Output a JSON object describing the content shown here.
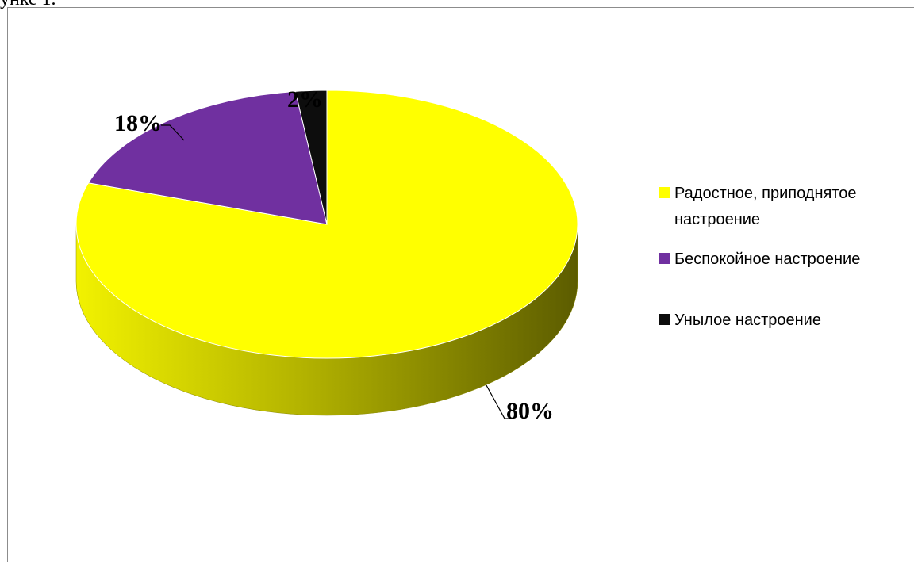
{
  "page": {
    "top_text": "унке 1."
  },
  "chart_data": {
    "type": "pie",
    "style": "3d",
    "categories": [
      "Радостное, приподнятое настроение",
      "Беспокойное настроение",
      "Унылое настроение"
    ],
    "values": [
      80,
      18,
      2
    ],
    "data_labels": [
      "80%",
      "18%",
      "2%"
    ],
    "colors": [
      "#ffff00",
      "#7030a0",
      "#0d0d0d"
    ],
    "legend": {
      "placement": "right",
      "entries": [
        {
          "lines": [
            "Радостное, приподнятое",
            "настроение"
          ],
          "color": "#ffff00"
        },
        {
          "lines": [
            "Беспокойное настроение"
          ],
          "color": "#7030a0"
        },
        {
          "lines": [
            "Унылое настроение"
          ],
          "color": "#0d0d0d"
        }
      ]
    }
  }
}
